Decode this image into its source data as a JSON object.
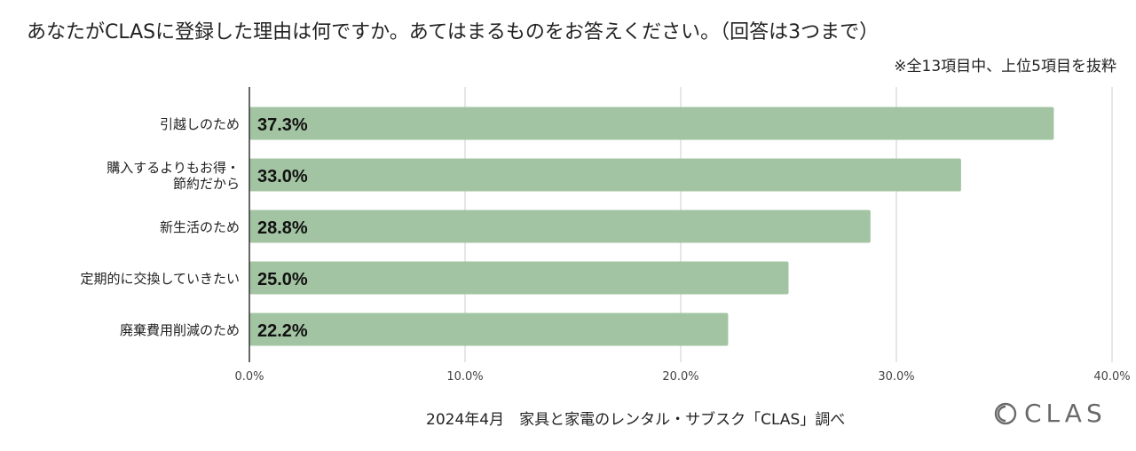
{
  "title": "あなたがCLASに登録した理由は何ですか。あてはまるものをお答えください。（回答は3つまで）",
  "note": "※全13項目中、上位5項目を抜粋",
  "footer": "2024年4月　家具と家電のレンタル・サブスク「CLAS」調べ",
  "logo_text": "CLAS",
  "colors": {
    "bar": "#a3c4a2",
    "grid": "#cccccc",
    "axis": "#333333",
    "text": "#222222"
  },
  "chart_data": {
    "type": "bar",
    "orientation": "horizontal",
    "categories": [
      [
        "引越しのため"
      ],
      [
        "購入するよりもお得・",
        "節約だから"
      ],
      [
        "新生活のため"
      ],
      [
        "定期的に交換していきたい"
      ],
      [
        "廃棄費用削減のため"
      ]
    ],
    "values": [
      37.3,
      33.0,
      28.8,
      25.0,
      22.2
    ],
    "value_labels": [
      "37.3%",
      "33.0%",
      "28.8%",
      "25.0%",
      "22.2%"
    ],
    "xlim": [
      0,
      40
    ],
    "xticks": [
      0,
      10,
      20,
      30,
      40
    ],
    "xtick_labels": [
      "0.0%",
      "10.0%",
      "20.0%",
      "30.0%",
      "40.0%"
    ],
    "grid": true
  }
}
